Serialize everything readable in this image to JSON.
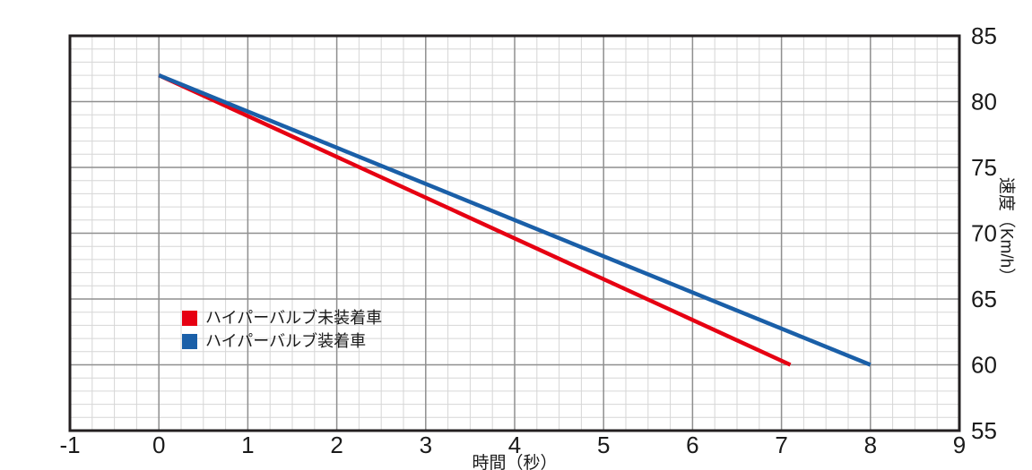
{
  "chart_data": {
    "type": "line",
    "title": "",
    "xlabel": "時間（秒）",
    "ylabel": "速度（Km/h）",
    "xlim": [
      -1,
      9
    ],
    "ylim": [
      55,
      85
    ],
    "x_ticks": [
      -1,
      0,
      1,
      2,
      3,
      4,
      5,
      6,
      7,
      8,
      9
    ],
    "y_ticks": [
      55,
      60,
      65,
      70,
      75,
      80,
      85
    ],
    "x_minor_step": 0.25,
    "y_minor_step": 1,
    "grid": true,
    "legend_position": "inside bottom-left",
    "y_axis_side": "right",
    "series": [
      {
        "name": "ハイパーバルブ未装着車",
        "color": "#e60012",
        "points": [
          [
            0,
            82
          ],
          [
            7.1,
            60
          ]
        ]
      },
      {
        "name": "ハイパーバルブ装着車",
        "color": "#1a5fa8",
        "points": [
          [
            0,
            82
          ],
          [
            8,
            60
          ]
        ]
      }
    ]
  },
  "colors": {
    "background": "#ffffff",
    "grid_minor": "#d6d6d6",
    "grid_major": "#8f8f8f",
    "frame": "#231f20",
    "text": "#1a1a1a"
  }
}
